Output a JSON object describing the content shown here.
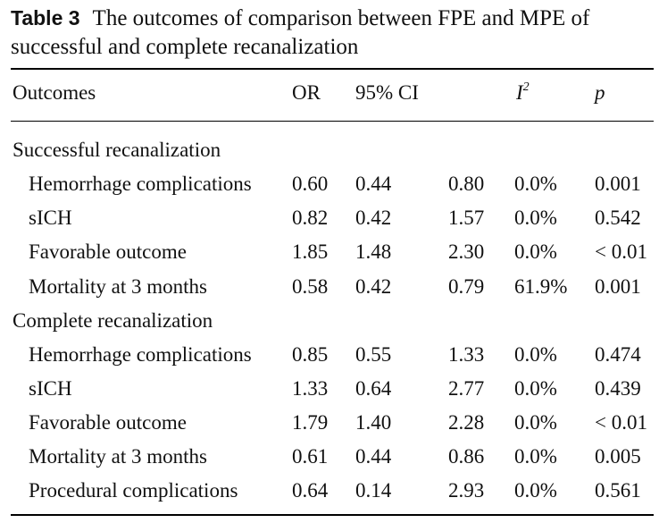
{
  "caption": {
    "label": "Table 3",
    "text": "The outcomes of comparison between FPE and MPE of successful and complete recanalization"
  },
  "headers": {
    "outcomes": "Outcomes",
    "or": "OR",
    "ci": "95% CI",
    "i2_base": "I",
    "i2_sup": "2",
    "p": "p"
  },
  "groups": [
    {
      "title": "Successful recanalization",
      "rows": [
        {
          "outcome": "Hemorrhage complications",
          "or": "0.60",
          "ci_low": "0.44",
          "ci_high": "0.80",
          "i2": "0.0%",
          "p": "0.001"
        },
        {
          "outcome": "sICH",
          "or": "0.82",
          "ci_low": "0.42",
          "ci_high": "1.57",
          "i2": "0.0%",
          "p": "0.542"
        },
        {
          "outcome": "Favorable outcome",
          "or": "1.85",
          "ci_low": "1.48",
          "ci_high": "2.30",
          "i2": "0.0%",
          "p": "< 0.01"
        },
        {
          "outcome": "Mortality at 3 months",
          "or": "0.58",
          "ci_low": "0.42",
          "ci_high": "0.79",
          "i2": "61.9%",
          "p": "0.001"
        }
      ]
    },
    {
      "title": "Complete recanalization",
      "rows": [
        {
          "outcome": "Hemorrhage complications",
          "or": "0.85",
          "ci_low": "0.55",
          "ci_high": "1.33",
          "i2": "0.0%",
          "p": "0.474"
        },
        {
          "outcome": "sICH",
          "or": "1.33",
          "ci_low": "0.64",
          "ci_high": "2.77",
          "i2": "0.0%",
          "p": "0.439"
        },
        {
          "outcome": "Favorable outcome",
          "or": "1.79",
          "ci_low": "1.40",
          "ci_high": "2.28",
          "i2": "0.0%",
          "p": "< 0.01"
        },
        {
          "outcome": "Mortality at 3 months",
          "or": "0.61",
          "ci_low": "0.44",
          "ci_high": "0.86",
          "i2": "0.0%",
          "p": "0.005"
        },
        {
          "outcome": "Procedural complications",
          "or": "0.64",
          "ci_low": "0.14",
          "ci_high": "2.93",
          "i2": "0.0%",
          "p": "0.561"
        }
      ]
    }
  ]
}
